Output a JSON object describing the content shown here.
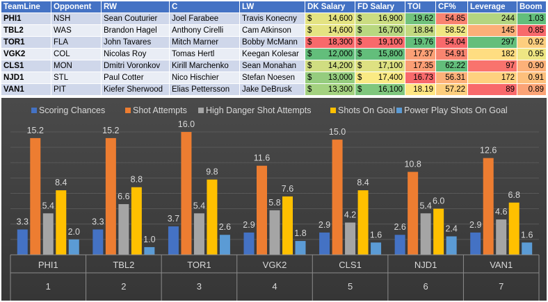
{
  "table": {
    "headers": [
      "TeamLine",
      "Opponent",
      "RW",
      "C",
      "LW",
      "DK Salary",
      "FD Salary",
      "TOI",
      "CF%",
      "Leverage",
      "Boom"
    ],
    "currency_symbol": "$",
    "rows": [
      {
        "teamline": "PHI1",
        "opponent": "NSH",
        "rw": "Sean Couturier",
        "c": "Joel Farabee",
        "lw": "Travis Konecny",
        "dk": "14,600",
        "fd": "16,900",
        "toi": "19.62",
        "cf": "54.85",
        "leverage": "244",
        "boom": "1.03"
      },
      {
        "teamline": "TBL2",
        "opponent": "WAS",
        "rw": "Brandon Hagel",
        "c": "Anthony Cirelli",
        "lw": "Cam Atkinson",
        "dk": "14,600",
        "fd": "16,700",
        "toi": "18.84",
        "cf": "58.52",
        "leverage": "145",
        "boom": "0.85"
      },
      {
        "teamline": "TOR1",
        "opponent": "FLA",
        "rw": "John Tavares",
        "c": "Mitch Marner",
        "lw": "Bobby McMann",
        "dk": "18,300",
        "fd": "19,100",
        "toi": "19.76",
        "cf": "54.04",
        "leverage": "297",
        "boom": "0.92"
      },
      {
        "teamline": "VGK2",
        "opponent": "COL",
        "rw": "Nicolas Roy",
        "c": "Tomas Hertl",
        "lw": "Keegan Kolesar",
        "dk": "12,000",
        "fd": "15,800",
        "toi": "17.37",
        "cf": "54.91",
        "leverage": "182",
        "boom": "0.95"
      },
      {
        "teamline": "CLS1",
        "opponent": "MON",
        "rw": "Dmitri Voronkov",
        "c": "Kirill Marchenko",
        "lw": "Sean Monahan",
        "dk": "14,200",
        "fd": "17,100",
        "toi": "17.35",
        "cf": "62.22",
        "leverage": "97",
        "boom": "0.90"
      },
      {
        "teamline": "NJD1",
        "opponent": "STL",
        "rw": "Paul Cotter",
        "c": "Nico Hischier",
        "lw": "Stefan Noesen",
        "dk": "13,000",
        "fd": "17,400",
        "toi": "16.73",
        "cf": "56.31",
        "leverage": "172",
        "boom": "0.91"
      },
      {
        "teamline": "VAN1",
        "opponent": "PIT",
        "rw": "Kiefer Sherwood",
        "c": "Elias Pettersson",
        "lw": "Jake DeBrusk",
        "dk": "13,300",
        "fd": "16,100",
        "toi": "18.19",
        "cf": "57.22",
        "leverage": "89",
        "boom": "0.89"
      }
    ]
  },
  "colors": {
    "header_bg": "#4472c4",
    "scale_low": "#f8696b",
    "scale_mid": "#ffeb84",
    "scale_high": "#63be7b",
    "series": [
      "#4472c4",
      "#ed7d31",
      "#a5a5a5",
      "#ffc000",
      "#5b9bd5"
    ]
  },
  "chart_data": {
    "type": "bar",
    "categories": [
      "PHI1",
      "TBL2",
      "TOR1",
      "VGK2",
      "CLS1",
      "NJD1",
      "VAN1"
    ],
    "category_indices": [
      "1",
      "2",
      "3",
      "4",
      "5",
      "6",
      "7"
    ],
    "ylim": [
      0,
      17
    ],
    "grid": true,
    "legend": "top",
    "series": [
      {
        "name": "Scoring Chances",
        "values": [
          3.3,
          3.3,
          3.7,
          2.9,
          2.9,
          2.6,
          2.9
        ]
      },
      {
        "name": "Shot Attempts",
        "values": [
          15.2,
          15.2,
          16.0,
          11.6,
          15.0,
          10.8,
          12.6
        ]
      },
      {
        "name": "High Danger Shot Attempts",
        "values": [
          5.4,
          6.6,
          5.4,
          5.8,
          4.2,
          5.4,
          4.6
        ]
      },
      {
        "name": "Shots On Goal",
        "values": [
          8.4,
          8.8,
          9.8,
          7.6,
          8.4,
          6.0,
          6.8
        ]
      },
      {
        "name": "Power Play Shots On Goal",
        "values": [
          2.0,
          1.0,
          2.6,
          1.8,
          1.6,
          2.4,
          1.6
        ]
      }
    ]
  }
}
